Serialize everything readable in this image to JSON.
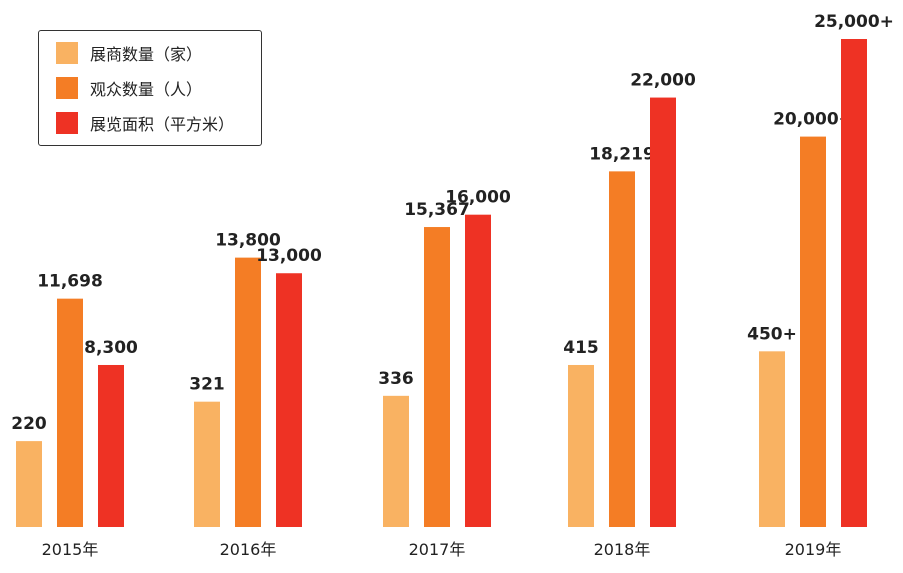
{
  "chart_data": {
    "type": "bar",
    "title": "",
    "xlabel": "",
    "ylabel": "",
    "categories": [
      "2015年",
      "2016年",
      "2017年",
      "2018年",
      "2019年"
    ],
    "ylim": [
      0,
      25000
    ],
    "secondary_ylim": [
      0,
      1250
    ],
    "grid": false,
    "legend_position": "top-left",
    "series": [
      {
        "name": "展商数量（家）",
        "color": "#F9B262",
        "axis": "secondary",
        "values": [
          220,
          321,
          336,
          415,
          450
        ],
        "labels": [
          "220",
          "321",
          "336",
          "415",
          "450+"
        ]
      },
      {
        "name": "观众数量（人）",
        "color": "#F47D25",
        "axis": "primary",
        "values": [
          11698,
          13800,
          15367,
          18219,
          20000
        ],
        "labels": [
          "11,698",
          "13,800",
          "15,367",
          "18,219",
          "20,000+"
        ]
      },
      {
        "name": "展览面积（平方米）",
        "color": "#EE3224",
        "axis": "primary",
        "values": [
          8300,
          13000,
          16000,
          22000,
          25000
        ],
        "labels": [
          "8,300",
          "13,000",
          "16,000",
          "22,000",
          "25,000+"
        ]
      }
    ]
  }
}
